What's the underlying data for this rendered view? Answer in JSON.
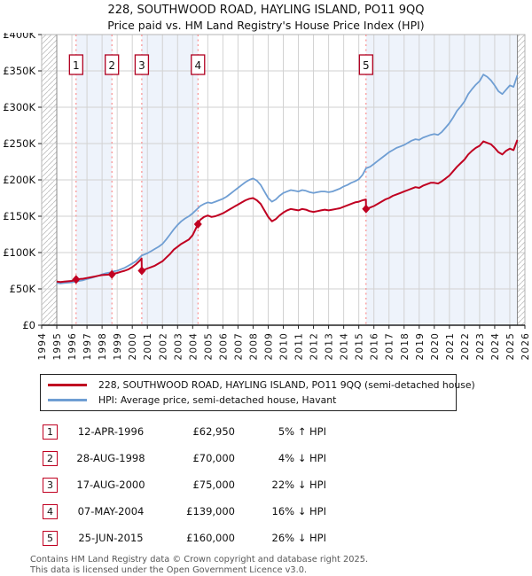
{
  "chart_data": {
    "type": "line",
    "title": "228, SOUTHWOOD ROAD, HAYLING ISLAND, PO11 9QQ",
    "subtitle": "Price paid vs. HM Land Registry's House Price Index (HPI)",
    "x_range": [
      1994,
      2026
    ],
    "y_range": [
      0,
      400000
    ],
    "y_tick_step": 50000,
    "y_tick_labels": [
      "£0",
      "£50K",
      "£100K",
      "£150K",
      "£200K",
      "£250K",
      "£300K",
      "£350K",
      "£400K"
    ],
    "x_ticks": [
      1994,
      1995,
      1996,
      1997,
      1998,
      1999,
      2000,
      2001,
      2002,
      2003,
      2004,
      2005,
      2006,
      2007,
      2008,
      2009,
      2010,
      2011,
      2012,
      2013,
      2014,
      2015,
      2016,
      2017,
      2018,
      2019,
      2020,
      2021,
      2022,
      2023,
      2024,
      2025,
      2026
    ],
    "grid_color": "#d2d2d2",
    "band_color": "#eef3fb",
    "dashed_line_color": "#f97a7a",
    "sale_box_color": "#b00020",
    "axis_color": "#222222",
    "data_limit_lines": [
      1995,
      2025.5
    ],
    "no_data_hatch": [
      [
        1994,
        1995
      ],
      [
        2025.5,
        2026
      ]
    ],
    "owned_bands": [
      [
        1996.28,
        1998.65
      ],
      [
        2000.63,
        2004.35
      ],
      [
        2015.48,
        2025.5
      ]
    ],
    "sales": [
      {
        "n": "1",
        "year": 1996.28,
        "price": 62950
      },
      {
        "n": "2",
        "year": 1998.65,
        "price": 70000
      },
      {
        "n": "3",
        "year": 2000.63,
        "price": 75000
      },
      {
        "n": "4",
        "year": 2004.35,
        "price": 139000
      },
      {
        "n": "5",
        "year": 2015.48,
        "price": 160000
      }
    ],
    "series": [
      {
        "name": "228, SOUTHWOOD ROAD, HAYLING ISLAND, PO11 9QQ (semi-detached house)",
        "color": "#c00021",
        "width": 2,
        "points": [
          [
            1995.0,
            60000
          ],
          [
            1995.25,
            59500
          ],
          [
            1995.5,
            60000
          ],
          [
            1995.75,
            60500
          ],
          [
            1996.0,
            61000
          ],
          [
            1996.28,
            62950
          ],
          [
            1996.5,
            63500
          ],
          [
            1996.75,
            64000
          ],
          [
            1997.0,
            65000
          ],
          [
            1997.25,
            66000
          ],
          [
            1997.5,
            67000
          ],
          [
            1997.75,
            68000
          ],
          [
            1998.0,
            69000
          ],
          [
            1998.35,
            69500
          ],
          [
            1998.65,
            70000
          ],
          [
            1998.75,
            71000
          ],
          [
            1999.0,
            72000
          ],
          [
            1999.25,
            73500
          ],
          [
            1999.5,
            75000
          ],
          [
            1999.75,
            77000
          ],
          [
            2000.0,
            80000
          ],
          [
            2000.25,
            84000
          ],
          [
            2000.5,
            89000
          ],
          [
            2000.62,
            92000
          ],
          [
            2000.63,
            75000
          ],
          [
            2000.75,
            76000
          ],
          [
            2001.0,
            78000
          ],
          [
            2001.25,
            80000
          ],
          [
            2001.5,
            82000
          ],
          [
            2001.75,
            85000
          ],
          [
            2002.0,
            88000
          ],
          [
            2002.25,
            93000
          ],
          [
            2002.5,
            98000
          ],
          [
            2002.75,
            104000
          ],
          [
            2003.0,
            108000
          ],
          [
            2003.25,
            112000
          ],
          [
            2003.5,
            115000
          ],
          [
            2003.75,
            118000
          ],
          [
            2004.0,
            124000
          ],
          [
            2004.35,
            139000
          ],
          [
            2004.5,
            145000
          ],
          [
            2004.75,
            149000
          ],
          [
            2005.0,
            151000
          ],
          [
            2005.25,
            149000
          ],
          [
            2005.5,
            150000
          ],
          [
            2005.75,
            152000
          ],
          [
            2006.0,
            154000
          ],
          [
            2006.25,
            157000
          ],
          [
            2006.5,
            160000
          ],
          [
            2006.75,
            163000
          ],
          [
            2007.0,
            166000
          ],
          [
            2007.25,
            169000
          ],
          [
            2007.5,
            172000
          ],
          [
            2007.75,
            174000
          ],
          [
            2008.0,
            175000
          ],
          [
            2008.25,
            172000
          ],
          [
            2008.5,
            167000
          ],
          [
            2008.75,
            158000
          ],
          [
            2009.0,
            149000
          ],
          [
            2009.25,
            143000
          ],
          [
            2009.5,
            146000
          ],
          [
            2009.75,
            151000
          ],
          [
            2010.0,
            155000
          ],
          [
            2010.25,
            158000
          ],
          [
            2010.5,
            160000
          ],
          [
            2010.75,
            159000
          ],
          [
            2011.0,
            158000
          ],
          [
            2011.25,
            160000
          ],
          [
            2011.5,
            159000
          ],
          [
            2011.75,
            157000
          ],
          [
            2012.0,
            156000
          ],
          [
            2012.25,
            157000
          ],
          [
            2012.5,
            158000
          ],
          [
            2012.75,
            159000
          ],
          [
            2013.0,
            158000
          ],
          [
            2013.25,
            159000
          ],
          [
            2013.5,
            160000
          ],
          [
            2013.75,
            161000
          ],
          [
            2014.0,
            163000
          ],
          [
            2014.25,
            165000
          ],
          [
            2014.5,
            167000
          ],
          [
            2014.75,
            169000
          ],
          [
            2015.0,
            170000
          ],
          [
            2015.25,
            172000
          ],
          [
            2015.47,
            173000
          ],
          [
            2015.48,
            160000
          ],
          [
            2015.75,
            162000
          ],
          [
            2016.0,
            164000
          ],
          [
            2016.25,
            167000
          ],
          [
            2016.5,
            170000
          ],
          [
            2016.75,
            173000
          ],
          [
            2017.0,
            175000
          ],
          [
            2017.25,
            178000
          ],
          [
            2017.5,
            180000
          ],
          [
            2017.75,
            182000
          ],
          [
            2018.0,
            184000
          ],
          [
            2018.25,
            186000
          ],
          [
            2018.5,
            188000
          ],
          [
            2018.75,
            190000
          ],
          [
            2019.0,
            189000
          ],
          [
            2019.25,
            192000
          ],
          [
            2019.5,
            194000
          ],
          [
            2019.75,
            196000
          ],
          [
            2020.0,
            196000
          ],
          [
            2020.25,
            195000
          ],
          [
            2020.5,
            198000
          ],
          [
            2020.75,
            202000
          ],
          [
            2021.0,
            206000
          ],
          [
            2021.25,
            212000
          ],
          [
            2021.5,
            218000
          ],
          [
            2021.75,
            223000
          ],
          [
            2022.0,
            228000
          ],
          [
            2022.25,
            235000
          ],
          [
            2022.5,
            240000
          ],
          [
            2022.75,
            244000
          ],
          [
            2023.0,
            247000
          ],
          [
            2023.25,
            253000
          ],
          [
            2023.5,
            251000
          ],
          [
            2023.75,
            249000
          ],
          [
            2024.0,
            244000
          ],
          [
            2024.25,
            238000
          ],
          [
            2024.5,
            235000
          ],
          [
            2024.75,
            240000
          ],
          [
            2025.0,
            243000
          ],
          [
            2025.25,
            241000
          ],
          [
            2025.5,
            255000
          ]
        ]
      },
      {
        "name": "HPI: Average price, semi-detached house, Havant",
        "color": "#6f9ed3",
        "width": 1.8,
        "points": [
          [
            1995.0,
            58000
          ],
          [
            1995.25,
            57500
          ],
          [
            1995.5,
            58000
          ],
          [
            1995.75,
            58500
          ],
          [
            1996.0,
            59000
          ],
          [
            1996.28,
            60000
          ],
          [
            1996.5,
            61000
          ],
          [
            1996.75,
            62000
          ],
          [
            1997.0,
            63500
          ],
          [
            1997.25,
            65000
          ],
          [
            1997.5,
            66500
          ],
          [
            1997.75,
            68000
          ],
          [
            1998.0,
            70000
          ],
          [
            1998.25,
            71500
          ],
          [
            1998.65,
            73000
          ],
          [
            1998.75,
            74000
          ],
          [
            1999.0,
            75000
          ],
          [
            1999.25,
            77000
          ],
          [
            1999.5,
            79000
          ],
          [
            1999.75,
            82000
          ],
          [
            2000.0,
            85000
          ],
          [
            2000.25,
            88000
          ],
          [
            2000.63,
            96000
          ],
          [
            2000.75,
            97000
          ],
          [
            2001.0,
            99000
          ],
          [
            2001.25,
            102000
          ],
          [
            2001.5,
            105000
          ],
          [
            2001.75,
            108000
          ],
          [
            2002.0,
            112000
          ],
          [
            2002.25,
            118000
          ],
          [
            2002.5,
            125000
          ],
          [
            2002.75,
            132000
          ],
          [
            2003.0,
            138000
          ],
          [
            2003.25,
            143000
          ],
          [
            2003.5,
            147000
          ],
          [
            2003.75,
            150000
          ],
          [
            2004.0,
            154000
          ],
          [
            2004.35,
            161000
          ],
          [
            2004.5,
            164000
          ],
          [
            2004.75,
            167000
          ],
          [
            2005.0,
            169000
          ],
          [
            2005.25,
            168000
          ],
          [
            2005.5,
            170000
          ],
          [
            2005.75,
            172000
          ],
          [
            2006.0,
            174000
          ],
          [
            2006.25,
            177000
          ],
          [
            2006.5,
            181000
          ],
          [
            2006.75,
            185000
          ],
          [
            2007.0,
            189000
          ],
          [
            2007.25,
            193000
          ],
          [
            2007.5,
            197000
          ],
          [
            2007.75,
            200000
          ],
          [
            2008.0,
            202000
          ],
          [
            2008.25,
            199000
          ],
          [
            2008.5,
            193000
          ],
          [
            2008.75,
            184000
          ],
          [
            2009.0,
            175000
          ],
          [
            2009.25,
            170000
          ],
          [
            2009.5,
            173000
          ],
          [
            2009.75,
            178000
          ],
          [
            2010.0,
            182000
          ],
          [
            2010.25,
            184000
          ],
          [
            2010.5,
            186000
          ],
          [
            2010.75,
            185000
          ],
          [
            2011.0,
            184000
          ],
          [
            2011.25,
            186000
          ],
          [
            2011.5,
            185000
          ],
          [
            2011.75,
            183000
          ],
          [
            2012.0,
            182000
          ],
          [
            2012.25,
            183000
          ],
          [
            2012.5,
            184000
          ],
          [
            2012.75,
            184000
          ],
          [
            2013.0,
            183000
          ],
          [
            2013.25,
            184000
          ],
          [
            2013.5,
            186000
          ],
          [
            2013.75,
            188000
          ],
          [
            2014.0,
            191000
          ],
          [
            2014.25,
            193000
          ],
          [
            2014.5,
            196000
          ],
          [
            2014.75,
            198000
          ],
          [
            2015.0,
            201000
          ],
          [
            2015.25,
            207000
          ],
          [
            2015.48,
            216000
          ],
          [
            2015.75,
            218000
          ],
          [
            2016.0,
            222000
          ],
          [
            2016.25,
            226000
          ],
          [
            2016.5,
            230000
          ],
          [
            2016.75,
            234000
          ],
          [
            2017.0,
            238000
          ],
          [
            2017.25,
            241000
          ],
          [
            2017.5,
            244000
          ],
          [
            2017.75,
            246000
          ],
          [
            2018.0,
            248000
          ],
          [
            2018.25,
            251000
          ],
          [
            2018.5,
            254000
          ],
          [
            2018.75,
            256000
          ],
          [
            2019.0,
            255000
          ],
          [
            2019.25,
            258000
          ],
          [
            2019.5,
            260000
          ],
          [
            2019.75,
            262000
          ],
          [
            2020.0,
            263000
          ],
          [
            2020.25,
            262000
          ],
          [
            2020.5,
            266000
          ],
          [
            2020.75,
            272000
          ],
          [
            2021.0,
            278000
          ],
          [
            2021.25,
            286000
          ],
          [
            2021.5,
            295000
          ],
          [
            2021.75,
            301000
          ],
          [
            2022.0,
            308000
          ],
          [
            2022.25,
            318000
          ],
          [
            2022.5,
            325000
          ],
          [
            2022.75,
            331000
          ],
          [
            2023.0,
            336000
          ],
          [
            2023.25,
            345000
          ],
          [
            2023.5,
            342000
          ],
          [
            2023.75,
            337000
          ],
          [
            2024.0,
            330000
          ],
          [
            2024.25,
            322000
          ],
          [
            2024.5,
            318000
          ],
          [
            2024.75,
            324000
          ],
          [
            2025.0,
            330000
          ],
          [
            2025.25,
            328000
          ],
          [
            2025.5,
            344000
          ]
        ]
      }
    ],
    "legend_position": "bottom"
  },
  "transactions": [
    {
      "n": "1",
      "date": "12-APR-1996",
      "price": "£62,950",
      "hpi_diff": "5% ↑ HPI"
    },
    {
      "n": "2",
      "date": "28-AUG-1998",
      "price": "£70,000",
      "hpi_diff": "4% ↓ HPI"
    },
    {
      "n": "3",
      "date": "17-AUG-2000",
      "price": "£75,000",
      "hpi_diff": "22% ↓ HPI"
    },
    {
      "n": "4",
      "date": "07-MAY-2004",
      "price": "£139,000",
      "hpi_diff": "16% ↓ HPI"
    },
    {
      "n": "5",
      "date": "25-JUN-2015",
      "price": "£160,000",
      "hpi_diff": "26% ↓ HPI"
    }
  ],
  "footer": {
    "line1": "Contains HM Land Registry data © Crown copyright and database right 2025.",
    "line2": "This data is licensed under the Open Government Licence v3.0."
  }
}
